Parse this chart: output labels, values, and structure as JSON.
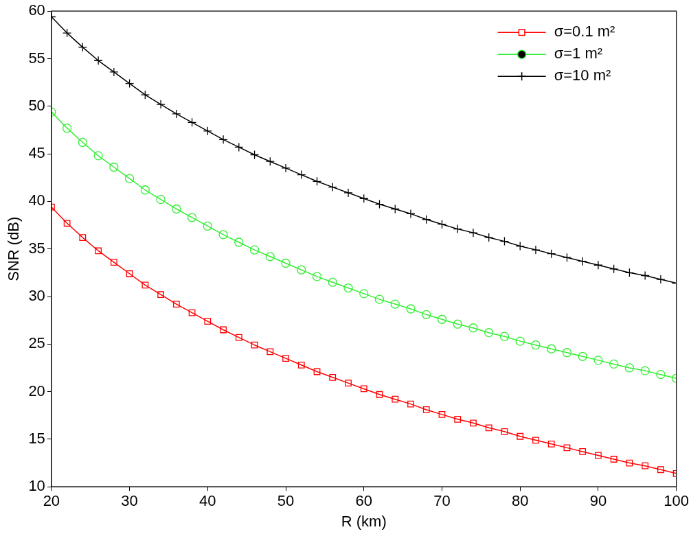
{
  "chart_data": {
    "type": "line",
    "xlabel": "R (km)",
    "ylabel": "SNR (dB)",
    "x": [
      20,
      22,
      24,
      26,
      28,
      30,
      32,
      34,
      36,
      38,
      40,
      42,
      44,
      46,
      48,
      50,
      52,
      54,
      56,
      58,
      60,
      62,
      64,
      66,
      68,
      70,
      72,
      74,
      76,
      78,
      80,
      82,
      84,
      86,
      88,
      90,
      92,
      94,
      96,
      98,
      100
    ],
    "series": [
      {
        "name": "σ=0.1 m²",
        "color": "#ff0000",
        "marker": "square",
        "values": [
          39.4,
          37.7,
          36.2,
          34.8,
          33.6,
          32.4,
          31.2,
          30.2,
          29.2,
          28.3,
          27.4,
          26.5,
          25.7,
          24.9,
          24.2,
          23.5,
          22.8,
          22.1,
          21.5,
          20.9,
          20.3,
          19.7,
          19.2,
          18.7,
          18.1,
          17.6,
          17.1,
          16.7,
          16.2,
          15.8,
          15.3,
          14.9,
          14.5,
          14.1,
          13.7,
          13.3,
          12.9,
          12.5,
          12.2,
          11.8,
          11.4
        ]
      },
      {
        "name": "σ=1 m²",
        "color": "#33ee33",
        "marker": "circle",
        "values": [
          49.4,
          47.7,
          46.2,
          44.8,
          43.6,
          42.4,
          41.2,
          40.2,
          39.2,
          38.3,
          37.4,
          36.5,
          35.7,
          34.9,
          34.2,
          33.5,
          32.8,
          32.1,
          31.5,
          30.9,
          30.3,
          29.7,
          29.2,
          28.7,
          28.1,
          27.6,
          27.1,
          26.7,
          26.2,
          25.8,
          25.3,
          24.9,
          24.5,
          24.1,
          23.7,
          23.3,
          22.9,
          22.5,
          22.2,
          21.8,
          21.4
        ]
      },
      {
        "name": "σ=10 m²",
        "color": "#000000",
        "marker": "cross",
        "values": [
          59.4,
          57.7,
          56.2,
          54.8,
          53.6,
          52.4,
          51.2,
          50.2,
          49.2,
          48.3,
          47.4,
          46.5,
          45.7,
          44.9,
          44.2,
          43.5,
          42.8,
          42.1,
          41.5,
          40.9,
          40.3,
          39.7,
          39.2,
          38.7,
          38.1,
          37.6,
          37.1,
          36.7,
          36.2,
          35.8,
          35.3,
          34.9,
          34.5,
          34.1,
          33.7,
          33.3,
          32.9,
          32.5,
          32.2,
          31.8,
          31.4
        ]
      }
    ],
    "xlim": [
      20,
      100
    ],
    "xticks": [
      20,
      30,
      40,
      50,
      60,
      70,
      80,
      90,
      100
    ],
    "ylim": [
      10,
      60
    ],
    "yticks": [
      10,
      15,
      20,
      25,
      30,
      35,
      40,
      45,
      50,
      55,
      60
    ],
    "grid": false,
    "legend": "top right",
    "line_style": "solid"
  }
}
